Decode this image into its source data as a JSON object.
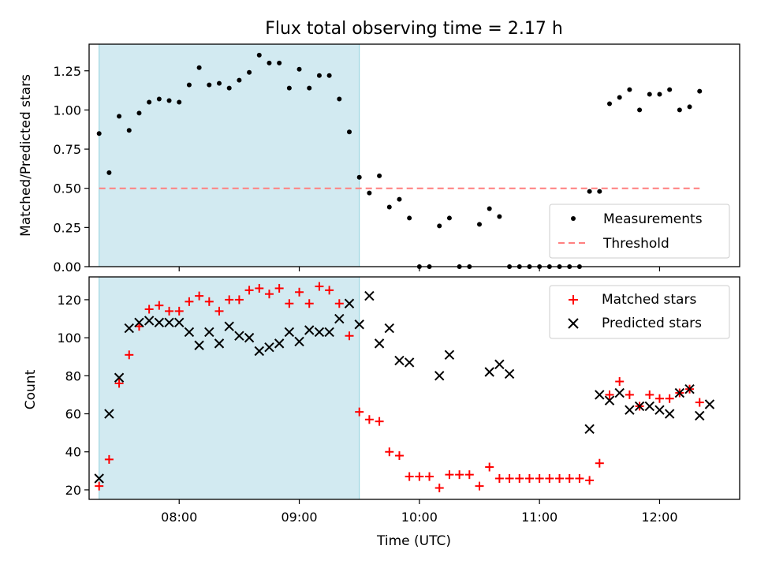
{
  "chart_data": [
    {
      "type": "scatter",
      "title": "Flux total observing time = 2.17 h",
      "xlabel": "",
      "ylabel": "Matched/Predicted stars",
      "ylim": [
        0,
        1.42
      ],
      "yticks": [
        "0.00",
        "0.25",
        "0.50",
        "0.75",
        "1.00",
        "1.25"
      ],
      "xlim": [
        "07:15",
        "12:40"
      ],
      "grid": false,
      "legend_position": "lower-right",
      "shaded_interval": [
        "07:20",
        "09:30"
      ],
      "shaded_color": "#add8e6",
      "threshold": {
        "name": "Threshold",
        "value": 0.5,
        "color": "#ff7f7f",
        "style": "dashed"
      },
      "series": [
        {
          "name": "Measurements",
          "marker": "dot",
          "color": "#000000",
          "x": [
            "07:20",
            "07:25",
            "07:30",
            "07:35",
            "07:40",
            "07:45",
            "07:50",
            "07:55",
            "08:00",
            "08:05",
            "08:10",
            "08:15",
            "08:20",
            "08:25",
            "08:30",
            "08:35",
            "08:40",
            "08:45",
            "08:50",
            "08:55",
            "09:00",
            "09:05",
            "09:10",
            "09:15",
            "09:20",
            "09:25",
            "09:30",
            "09:35",
            "09:40",
            "09:45",
            "09:50",
            "09:55",
            "10:00",
            "10:05",
            "10:10",
            "10:15",
            "10:20",
            "10:25",
            "10:30",
            "10:35",
            "10:40",
            "10:45",
            "10:50",
            "10:55",
            "11:00",
            "11:05",
            "11:10",
            "11:15",
            "11:20",
            "11:25",
            "11:30",
            "11:35",
            "11:40",
            "11:45",
            "11:50",
            "11:55",
            "12:00",
            "12:05",
            "12:10",
            "12:15",
            "12:20"
          ],
          "values": [
            0.85,
            0.6,
            0.96,
            0.87,
            0.98,
            1.05,
            1.07,
            1.06,
            1.05,
            1.16,
            1.27,
            1.16,
            1.17,
            1.14,
            1.19,
            1.24,
            1.35,
            1.3,
            1.3,
            1.14,
            1.26,
            1.14,
            1.22,
            1.22,
            1.07,
            0.86,
            0.57,
            0.47,
            0.58,
            0.38,
            0.43,
            0.31,
            0.0,
            0.0,
            0.26,
            0.31,
            0.0,
            0.0,
            0.27,
            0.37,
            0.32,
            0.0,
            0.0,
            0.0,
            0.0,
            0.0,
            0.0,
            0.0,
            0.0,
            0.48,
            0.48,
            1.04,
            1.08,
            1.13,
            1.0,
            1.1,
            1.1,
            1.13,
            1.0,
            1.02,
            1.12
          ]
        }
      ]
    },
    {
      "type": "scatter",
      "title": "",
      "xlabel": "Time (UTC)",
      "ylabel": "Count",
      "ylim": [
        15,
        132
      ],
      "yticks": [
        "20",
        "40",
        "60",
        "80",
        "100",
        "120"
      ],
      "xticks": [
        "08:00",
        "09:00",
        "10:00",
        "11:00",
        "12:00"
      ],
      "xlim": [
        "07:15",
        "12:40"
      ],
      "grid": false,
      "legend_position": "top-right",
      "shaded_interval": [
        "07:20",
        "09:30"
      ],
      "shaded_color": "#add8e6",
      "series": [
        {
          "name": "Matched stars",
          "marker": "plus",
          "color": "#ff0000",
          "x": [
            "07:20",
            "07:25",
            "07:30",
            "07:35",
            "07:40",
            "07:45",
            "07:50",
            "07:55",
            "08:00",
            "08:05",
            "08:10",
            "08:15",
            "08:20",
            "08:25",
            "08:30",
            "08:35",
            "08:40",
            "08:45",
            "08:50",
            "08:55",
            "09:00",
            "09:05",
            "09:10",
            "09:15",
            "09:20",
            "09:25",
            "09:30",
            "09:35",
            "09:40",
            "09:45",
            "09:50",
            "09:55",
            "10:00",
            "10:05",
            "10:10",
            "10:15",
            "10:20",
            "10:25",
            "10:30",
            "10:35",
            "10:40",
            "10:45",
            "10:50",
            "10:55",
            "11:00",
            "11:05",
            "11:10",
            "11:15",
            "11:20",
            "11:25",
            "11:30",
            "11:35",
            "11:40",
            "11:45",
            "11:50",
            "11:55",
            "12:00",
            "12:05",
            "12:10",
            "12:15",
            "12:20"
          ],
          "values": [
            22,
            36,
            76,
            91,
            106,
            115,
            117,
            114,
            114,
            119,
            122,
            119,
            114,
            120,
            120,
            125,
            126,
            123,
            126,
            118,
            124,
            118,
            127,
            125,
            118,
            101,
            61,
            57,
            56,
            40,
            38,
            27,
            27,
            27,
            21,
            28,
            28,
            28,
            22,
            32,
            26,
            26,
            26,
            26,
            26,
            26,
            26,
            26,
            26,
            25,
            34,
            70,
            77,
            70,
            64,
            70,
            68,
            68,
            71,
            73,
            66
          ]
        },
        {
          "name": "Predicted stars",
          "marker": "x",
          "color": "#000000",
          "x": [
            "07:20",
            "07:25",
            "07:30",
            "07:35",
            "07:40",
            "07:45",
            "07:50",
            "07:55",
            "08:00",
            "08:05",
            "08:10",
            "08:15",
            "08:20",
            "08:25",
            "08:30",
            "08:35",
            "08:40",
            "08:45",
            "08:50",
            "08:55",
            "09:00",
            "09:05",
            "09:10",
            "09:15",
            "09:20",
            "09:25",
            "09:30",
            "09:35",
            "09:40",
            "09:45",
            "09:50",
            "09:55",
            "10:10",
            "10:15",
            "10:35",
            "10:40",
            "10:45",
            "11:25",
            "11:30",
            "11:35",
            "11:40",
            "11:45",
            "11:50",
            "11:55",
            "12:00",
            "12:05",
            "12:10",
            "12:15",
            "12:20",
            "12:25"
          ],
          "values": [
            26,
            60,
            79,
            105,
            108,
            109,
            108,
            108,
            108,
            103,
            96,
            103,
            97,
            106,
            101,
            100,
            93,
            95,
            97,
            103,
            98,
            104,
            103,
            103,
            110,
            118,
            107,
            122,
            97,
            105,
            88,
            87,
            80,
            91,
            82,
            86,
            81,
            52,
            70,
            67,
            71,
            62,
            64,
            64,
            62,
            60,
            71,
            73,
            59,
            65
          ]
        }
      ]
    }
  ]
}
